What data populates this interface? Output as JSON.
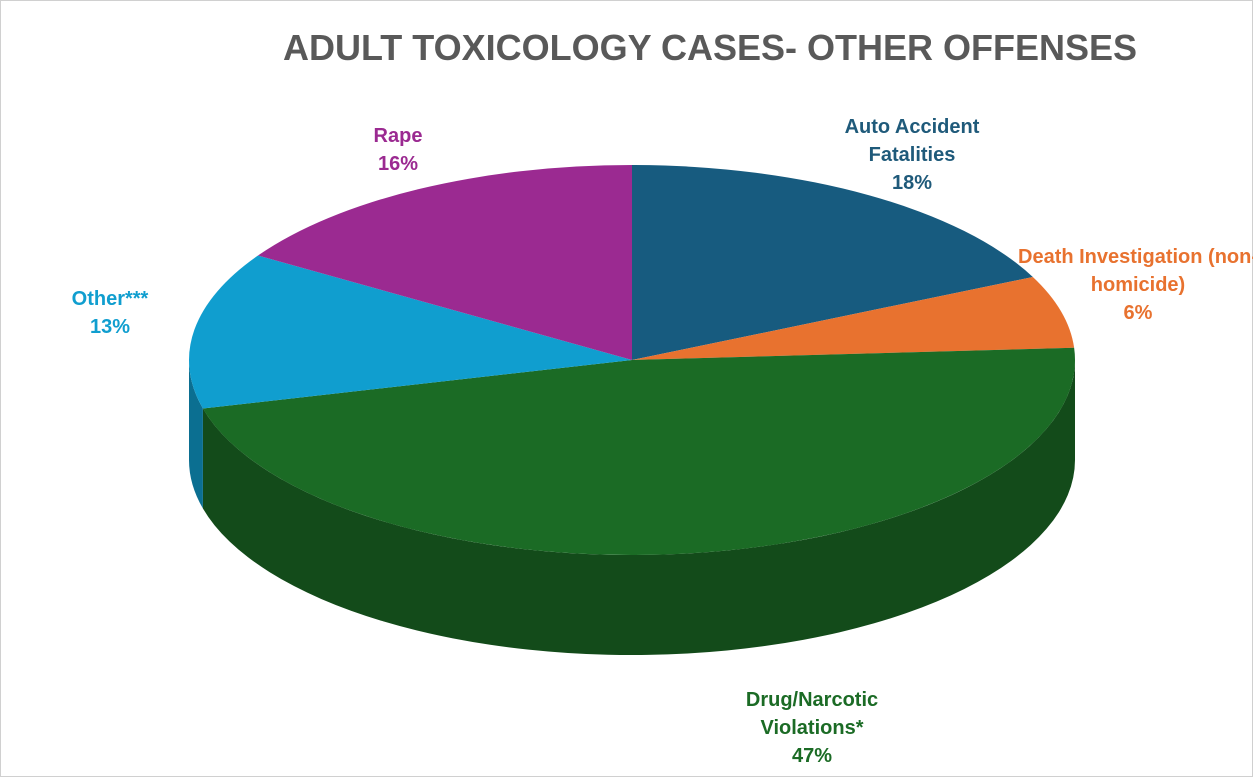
{
  "chart_data": {
    "type": "pie3d",
    "title": "ADULT TOXICOLOGY CASES- OTHER OFFENSES",
    "categories": [
      "Auto Accident Fatalities",
      "Death Investigation (non-homicide)",
      "Drug/Narcotic Violations*",
      "Other***",
      "Rape"
    ],
    "values": [
      18,
      6,
      47,
      13,
      16
    ],
    "value_labels": [
      "18%",
      "6%",
      "47%",
      "13%",
      "16%"
    ],
    "colors": [
      "#175b7f",
      "#e8722f",
      "#1b6b25",
      "#109ecf",
      "#9b2a91"
    ]
  }
}
